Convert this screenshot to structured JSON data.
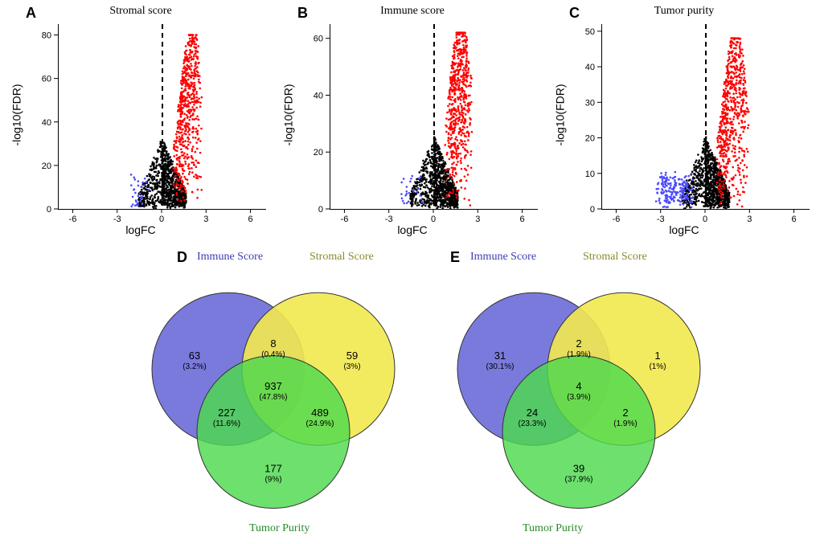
{
  "volcano_panels": [
    {
      "id": "A",
      "title": "Stromal score",
      "xlim": [
        -7,
        7
      ],
      "ylim": [
        0,
        85
      ],
      "xticks": [
        -6,
        -3,
        0,
        3,
        6
      ],
      "yticks": [
        0,
        20,
        40,
        60,
        80
      ]
    },
    {
      "id": "B",
      "title": "Immune score",
      "xlim": [
        -7,
        7
      ],
      "ylim": [
        0,
        65
      ],
      "xticks": [
        -6,
        -3,
        0,
        3,
        6
      ],
      "yticks": [
        0,
        20,
        40,
        60
      ]
    },
    {
      "id": "C",
      "title": "Tumor purity",
      "xlim": [
        -7,
        7
      ],
      "ylim": [
        0,
        52
      ],
      "xticks": [
        -6,
        -3,
        0,
        3,
        6
      ],
      "yticks": [
        0,
        10,
        20,
        30,
        40,
        50
      ]
    }
  ],
  "axis_labels": {
    "x": "logFC",
    "y": "-log10(FDR)"
  },
  "colors": {
    "up": "#ff0000",
    "down": "#4a4aff",
    "ns": "#000000",
    "venn_blue": "#6b6bd9",
    "venn_yellow": "#f2e94e",
    "venn_green": "#4dd94d",
    "label_blue": "#3b3bb3",
    "label_olive": "#8a8a2a",
    "label_green": "#2a8a2a",
    "bg": "#ffffff"
  },
  "point_size": 1.3,
  "venn_panels": [
    {
      "id": "D",
      "sets": {
        "immune": "Immune Score",
        "stromal": "Stromal Score",
        "tumor": "Tumor Purity"
      },
      "regions": {
        "immune_only": {
          "n": 63,
          "pct": "3.2%"
        },
        "stromal_only": {
          "n": 59,
          "pct": "3%"
        },
        "tumor_only": {
          "n": 177,
          "pct": "9%"
        },
        "immune_stromal": {
          "n": 8,
          "pct": "0.4%"
        },
        "immune_tumor": {
          "n": 227,
          "pct": "11.6%"
        },
        "stromal_tumor": {
          "n": 489,
          "pct": "24.9%"
        },
        "all": {
          "n": 937,
          "pct": "47.8%"
        }
      }
    },
    {
      "id": "E",
      "sets": {
        "immune": "Immune Score",
        "stromal": "Stromal Score",
        "tumor": "Tumor Purity"
      },
      "regions": {
        "immune_only": {
          "n": 31,
          "pct": "30.1%"
        },
        "stromal_only": {
          "n": 1,
          "pct": "1%"
        },
        "tumor_only": {
          "n": 39,
          "pct": "37.9%"
        },
        "immune_stromal": {
          "n": 2,
          "pct": "1.9%"
        },
        "immune_tumor": {
          "n": 24,
          "pct": "23.3%"
        },
        "stromal_tumor": {
          "n": 2,
          "pct": "1.9%"
        },
        "all": {
          "n": 4,
          "pct": "3.9%"
        }
      }
    }
  ],
  "volcano_data": {
    "A": {
      "ns_n": 900,
      "up_n": 600,
      "down_n": 30,
      "ymax": 80,
      "up_peak_x": 2.0,
      "up_spread": 1.4,
      "down_spread": 1.2
    },
    "B": {
      "ns_n": 900,
      "up_n": 600,
      "down_n": 25,
      "ymax": 62,
      "up_peak_x": 1.8,
      "up_spread": 1.3,
      "down_spread": 1.0
    },
    "C": {
      "ns_n": 1000,
      "up_n": 650,
      "down_n": 200,
      "ymax": 48,
      "up_peak_x": 2.0,
      "up_spread": 1.6,
      "down_spread": 2.2
    }
  }
}
